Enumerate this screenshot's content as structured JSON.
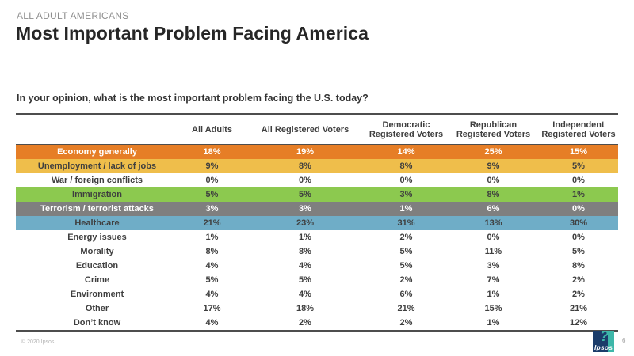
{
  "slide": {
    "eyebrow": "ALL ADULT AMERICANS",
    "title": "Most Important Problem Facing America",
    "question": "In your opinion, what is the most important problem facing the U.S. today?"
  },
  "table": {
    "columns": [
      "All Adults",
      "All Registered Voters",
      "Democratic Registered Voters",
      "Republican Registered Voters",
      "Independent Registered Voters"
    ],
    "rows": [
      {
        "label": "Economy generally",
        "values": [
          "18%",
          "19%",
          "14%",
          "25%",
          "15%"
        ],
        "bg": "#E67E26",
        "fg": "#FFFFFF"
      },
      {
        "label": "Unemployment / lack of jobs",
        "values": [
          "9%",
          "8%",
          "8%",
          "9%",
          "5%"
        ],
        "bg": "#EFBE4B",
        "fg": "#3F3F3F"
      },
      {
        "label": "War / foreign conflicts",
        "values": [
          "0%",
          "0%",
          "0%",
          "0%",
          "0%"
        ],
        "bg": "#FFFFFF",
        "fg": "#3F3F3F"
      },
      {
        "label": "Immigration",
        "values": [
          "5%",
          "5%",
          "3%",
          "8%",
          "1%"
        ],
        "bg": "#8CC94F",
        "fg": "#3F3F3F"
      },
      {
        "label": "Terrorism / terrorist attacks",
        "values": [
          "3%",
          "3%",
          "1%",
          "6%",
          "0%"
        ],
        "bg": "#7F7F7F",
        "fg": "#FFFFFF"
      },
      {
        "label": "Healthcare",
        "values": [
          "21%",
          "23%",
          "31%",
          "13%",
          "30%"
        ],
        "bg": "#6FADC7",
        "fg": "#3F3F3F"
      },
      {
        "label": "Energy issues",
        "values": [
          "1%",
          "1%",
          "2%",
          "0%",
          "0%"
        ],
        "bg": "#FFFFFF",
        "fg": "#3F3F3F"
      },
      {
        "label": "Morality",
        "values": [
          "8%",
          "8%",
          "5%",
          "11%",
          "5%"
        ],
        "bg": "#FFFFFF",
        "fg": "#3F3F3F"
      },
      {
        "label": "Education",
        "values": [
          "4%",
          "4%",
          "5%",
          "3%",
          "8%"
        ],
        "bg": "#FFFFFF",
        "fg": "#3F3F3F"
      },
      {
        "label": "Crime",
        "values": [
          "5%",
          "5%",
          "2%",
          "7%",
          "2%"
        ],
        "bg": "#FFFFFF",
        "fg": "#3F3F3F"
      },
      {
        "label": "Environment",
        "values": [
          "4%",
          "4%",
          "6%",
          "1%",
          "2%"
        ],
        "bg": "#FFFFFF",
        "fg": "#3F3F3F"
      },
      {
        "label": "Other",
        "values": [
          "17%",
          "18%",
          "21%",
          "15%",
          "21%"
        ],
        "bg": "#FFFFFF",
        "fg": "#3F3F3F"
      },
      {
        "label": "Don’t know",
        "values": [
          "4%",
          "2%",
          "2%",
          "1%",
          "12%"
        ],
        "bg": "#FFFFFF",
        "fg": "#3F3F3F"
      }
    ]
  },
  "chart_data": {
    "type": "table",
    "title": "Most Important Problem Facing America",
    "subtitle": "ALL ADULT AMERICANS",
    "question": "In your opinion, what is the most important problem facing the U.S. today?",
    "unit": "%",
    "categories": [
      "Economy generally",
      "Unemployment / lack of jobs",
      "War / foreign conflicts",
      "Immigration",
      "Terrorism / terrorist attacks",
      "Healthcare",
      "Energy issues",
      "Morality",
      "Education",
      "Crime",
      "Environment",
      "Other",
      "Don’t know"
    ],
    "series": [
      {
        "name": "All Adults",
        "values": [
          18,
          9,
          0,
          5,
          3,
          21,
          1,
          8,
          4,
          5,
          4,
          17,
          4
        ]
      },
      {
        "name": "All Registered Voters",
        "values": [
          19,
          8,
          0,
          5,
          3,
          23,
          1,
          8,
          4,
          5,
          4,
          18,
          2
        ]
      },
      {
        "name": "Democratic Registered Voters",
        "values": [
          14,
          8,
          0,
          3,
          1,
          31,
          2,
          5,
          5,
          2,
          6,
          21,
          2
        ]
      },
      {
        "name": "Republican Registered Voters",
        "values": [
          25,
          9,
          0,
          8,
          6,
          13,
          0,
          11,
          3,
          7,
          1,
          15,
          1
        ]
      },
      {
        "name": "Independent Registered Voters",
        "values": [
          15,
          5,
          0,
          1,
          0,
          30,
          0,
          5,
          8,
          2,
          2,
          21,
          12
        ]
      }
    ],
    "row_highlight_colors": [
      "#E67E26",
      "#EFBE4B",
      "#FFFFFF",
      "#8CC94F",
      "#7F7F7F",
      "#6FADC7",
      "#FFFFFF",
      "#FFFFFF",
      "#FFFFFF",
      "#FFFFFF",
      "#FFFFFF",
      "#FFFFFF",
      "#FFFFFF"
    ]
  },
  "footer": {
    "copyright": "© 2020 Ipsos",
    "logo_text": "Ipsos",
    "logo_glyph": "?",
    "page": "6"
  },
  "colors": {
    "accent_orange": "#E67E26",
    "accent_yellow": "#EFBE4B",
    "accent_green": "#8CC94F",
    "accent_gray": "#7F7F7F",
    "accent_blue": "#6FADC7",
    "logo_navy": "#1B3C6A",
    "logo_teal": "#3DB7A9",
    "rule_dark": "#4D4D4D"
  }
}
